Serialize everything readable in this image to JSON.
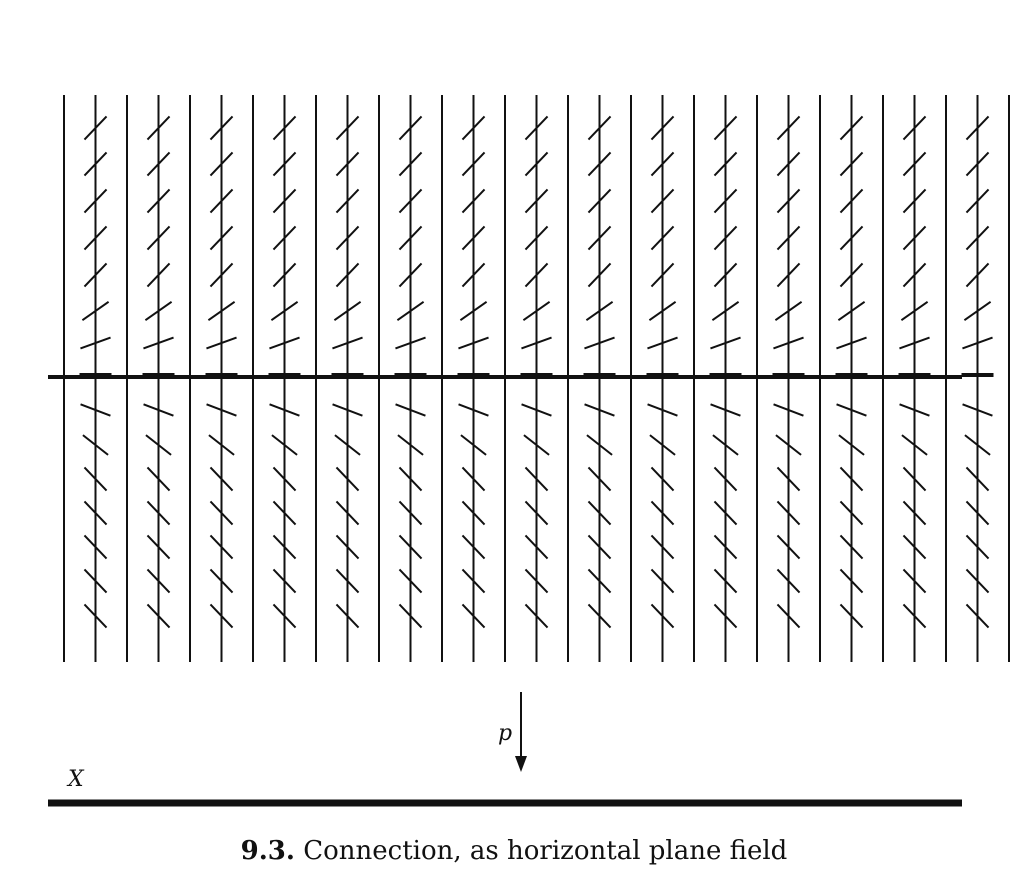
{
  "figure": {
    "labels": {
      "base_space": "X",
      "projection": "p"
    },
    "caption": {
      "number": "9.3.",
      "text": "Connection, as horizontal plane field"
    }
  }
}
